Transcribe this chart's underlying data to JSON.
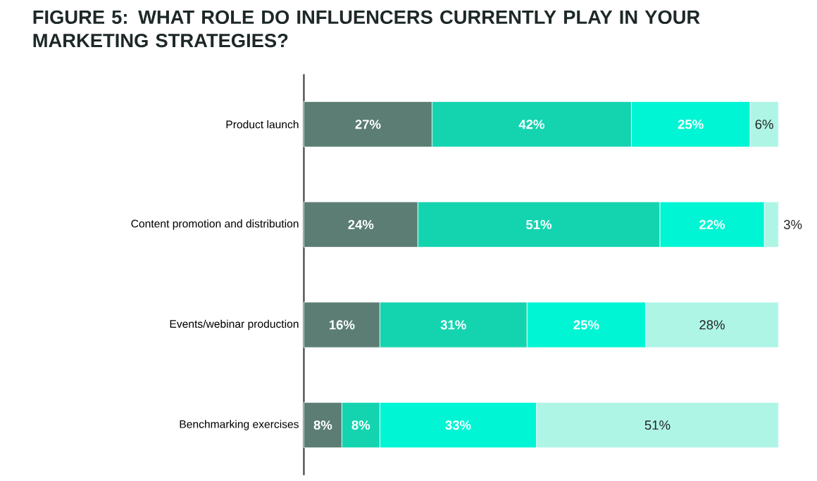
{
  "chart_data": {
    "type": "bar",
    "orientation": "horizontal",
    "stacked": true,
    "title": "FIGURE 5: WHAT ROLE DO INFLUENCERS CURRENTLY PLAY IN YOUR MARKETING STRATEGIES?",
    "categories": [
      "Product launch",
      "Content promotion and distribution",
      "Events/webinar production",
      "Benchmarking exercises"
    ],
    "series": [
      {
        "color": "#5b7d74",
        "values": [
          27,
          24,
          16,
          8
        ],
        "value_labels": [
          "27%",
          "24%",
          "16%",
          "8%"
        ]
      },
      {
        "color": "#14d4b0",
        "values": [
          42,
          51,
          31,
          8
        ],
        "value_labels": [
          "42%",
          "51%",
          "31%",
          "8%"
        ]
      },
      {
        "color": "#00f5d4",
        "values": [
          25,
          22,
          25,
          33
        ],
        "value_labels": [
          "25%",
          "22%",
          "25%",
          "33%"
        ]
      },
      {
        "color": "#aef5e6",
        "values": [
          6,
          3,
          28,
          51
        ],
        "value_labels": [
          "6%",
          "3%",
          "28%",
          "51%"
        ]
      }
    ]
  }
}
